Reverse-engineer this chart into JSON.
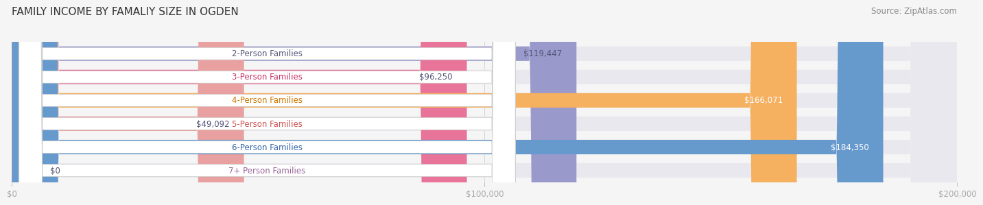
{
  "title": "FAMILY INCOME BY FAMALIY SIZE IN OGDEN",
  "source": "Source: ZipAtlas.com",
  "categories": [
    "2-Person Families",
    "3-Person Families",
    "4-Person Families",
    "5-Person Families",
    "6-Person Families",
    "7+ Person Families"
  ],
  "values": [
    119447,
    96250,
    166071,
    49092,
    184350,
    0
  ],
  "bar_colors": [
    "#9999cc",
    "#e87499",
    "#f5b060",
    "#e8a0a0",
    "#6699cc",
    "#c8b8d8"
  ],
  "label_colors": [
    "#555577",
    "#cc3366",
    "#cc7700",
    "#cc5555",
    "#3366aa",
    "#996699"
  ],
  "value_colors": [
    "#555577",
    "#555577",
    "#ffffff",
    "#555577",
    "#ffffff",
    "#555577"
  ],
  "xlim": [
    0,
    200000
  ],
  "xticks": [
    0,
    100000,
    200000
  ],
  "xtick_labels": [
    "$0",
    "$100,000",
    "$200,000"
  ],
  "background_color": "#f5f5f5",
  "bar_bg_color": "#e8e8ee",
  "bar_height": 0.62,
  "title_fontsize": 11,
  "source_fontsize": 8.5,
  "label_fontsize": 8.5,
  "value_fontsize": 8.5,
  "tick_fontsize": 8.5
}
